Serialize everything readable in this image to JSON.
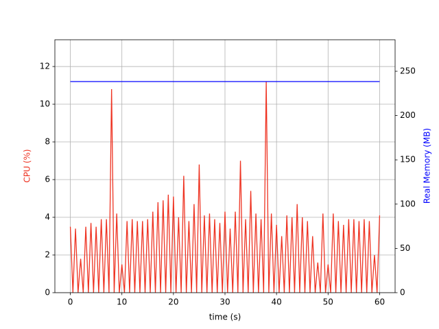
{
  "chart_data": {
    "type": "line",
    "xlabel": "time (s)",
    "ylabel": "CPU (%)",
    "y2label": "Real Memory (MB)",
    "xlim": [
      -3,
      63
    ],
    "ylim": [
      0,
      13.42
    ],
    "y2lim": [
      0,
      285.6
    ],
    "xticks": [
      0,
      10,
      20,
      30,
      40,
      50,
      60
    ],
    "yticks": [
      0,
      2,
      4,
      6,
      8,
      10,
      12
    ],
    "y2ticks": [
      0,
      50,
      100,
      150,
      200,
      250
    ],
    "grid": true,
    "series": [
      {
        "name": "CPU (%)",
        "color": "#ee3322",
        "axis": "y",
        "x": [
          0,
          0.5,
          1,
          1.5,
          2,
          2.5,
          3,
          3.5,
          4,
          4.5,
          5,
          5.5,
          6,
          6.5,
          7,
          7.5,
          8,
          8.5,
          9,
          9.5,
          10,
          10.5,
          11,
          11.5,
          12,
          12.5,
          13,
          13.5,
          14,
          14.5,
          15,
          15.5,
          16,
          16.5,
          17,
          17.5,
          18,
          18.5,
          19,
          19.5,
          20,
          20.5,
          21,
          21.5,
          22,
          22.5,
          23,
          23.5,
          24,
          24.5,
          25,
          25.5,
          26,
          26.5,
          27,
          27.5,
          28,
          28.5,
          29,
          29.5,
          30,
          30.5,
          31,
          31.5,
          32,
          32.5,
          33,
          33.5,
          34,
          34.5,
          35,
          35.5,
          36,
          36.5,
          37,
          37.5,
          38,
          38.5,
          39,
          39.5,
          40,
          40.5,
          41,
          41.5,
          42,
          42.5,
          43,
          43.5,
          44,
          44.5,
          45,
          45.5,
          46,
          46.5,
          47,
          47.5,
          48,
          48.5,
          49,
          49.5,
          50,
          50.5,
          51,
          51.5,
          52,
          52.5,
          53,
          53.5,
          54,
          54.5,
          55,
          55.5,
          56,
          56.5,
          57,
          57.5,
          58,
          58.5,
          59,
          59.5,
          60
        ],
        "values": [
          3.5,
          0,
          3.4,
          0,
          1.8,
          0,
          3.5,
          0,
          3.7,
          0,
          3.5,
          0,
          3.9,
          0,
          3.9,
          0,
          10.8,
          0,
          4.2,
          0,
          1.5,
          0,
          3.8,
          0,
          3.9,
          0,
          3.8,
          0,
          3.8,
          0,
          3.9,
          0,
          4.3,
          0,
          4.8,
          0,
          4.9,
          0,
          5.2,
          0,
          5.1,
          0,
          4.0,
          0,
          6.2,
          0,
          3.8,
          0,
          4.7,
          0,
          6.8,
          0,
          4.1,
          0,
          4.2,
          0,
          3.9,
          0,
          3.7,
          0,
          4.3,
          0,
          3.4,
          0,
          4.3,
          0,
          7.0,
          0,
          3.9,
          0,
          5.4,
          0,
          4.2,
          0,
          3.9,
          0,
          11.2,
          0,
          4.2,
          0,
          3.6,
          0,
          3.0,
          0,
          4.1,
          0,
          4.0,
          0,
          4.7,
          0,
          4.0,
          0,
          3.8,
          0,
          3.0,
          0,
          1.6,
          0,
          4.2,
          0,
          1.5,
          0,
          4.2,
          0,
          3.8,
          0,
          3.6,
          0,
          3.9,
          0,
          3.9,
          0,
          3.8,
          0,
          3.9,
          0,
          3.8,
          0,
          2.0,
          0,
          4.1
        ]
      },
      {
        "name": "Real Memory (MB)",
        "color": "#0000ff",
        "axis": "y2",
        "x": [
          0,
          60
        ],
        "values": [
          238.4,
          238.4
        ]
      }
    ]
  }
}
